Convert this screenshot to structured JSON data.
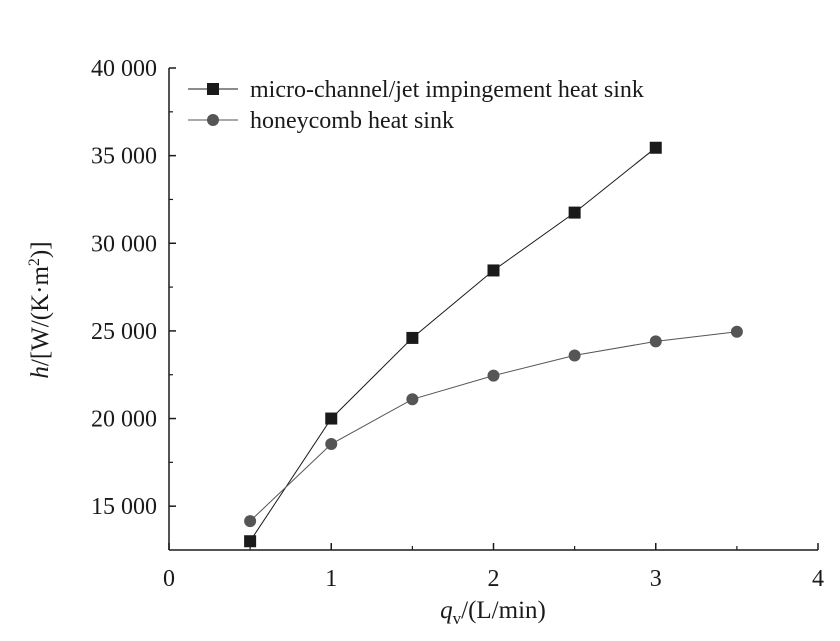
{
  "chart_data": {
    "type": "line",
    "title": "",
    "xlabel": {
      "main": "q",
      "sub": "v",
      "rest": "/(L/min)"
    },
    "ylabel": {
      "main": "h",
      "pre": "/[W/(K·m",
      "sup": "2",
      "post": ")]"
    },
    "xlim": [
      0,
      4
    ],
    "ylim": [
      12500,
      40000
    ],
    "x_ticks": [
      0,
      1,
      2,
      3,
      4
    ],
    "x_tick_labels": [
      "0",
      "1",
      "2",
      "3",
      "4"
    ],
    "y_ticks": [
      15000,
      20000,
      25000,
      30000,
      35000,
      40000
    ],
    "y_tick_labels": [
      "15 000",
      "20 000",
      "25 000",
      "30 000",
      "35 000",
      "40 000"
    ],
    "grid": false,
    "legend_position": "top-left",
    "series": [
      {
        "name": "micro-channel/jet impingement heat sink",
        "marker": "square",
        "color": "#1a1a1a",
        "x": [
          0.5,
          1.0,
          1.5,
          2.0,
          2.5,
          3.0
        ],
        "y": [
          13000,
          20000,
          24600,
          28450,
          31750,
          35450
        ]
      },
      {
        "name": "honeycomb heat sink",
        "marker": "circle",
        "color": "#555555",
        "x": [
          0.5,
          1.0,
          1.5,
          2.0,
          2.5,
          3.0,
          3.5
        ],
        "y": [
          14150,
          18550,
          21100,
          22450,
          23600,
          24400,
          24950
        ]
      }
    ]
  }
}
